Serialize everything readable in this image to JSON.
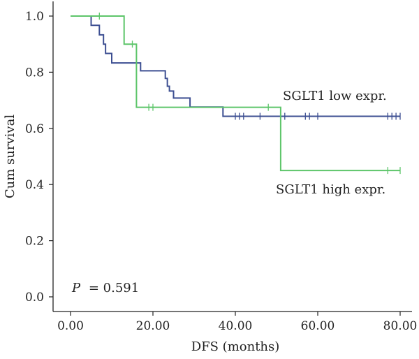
{
  "chart_data": {
    "type": "line",
    "subtype": "kaplan-meier",
    "title": "",
    "xlabel": "DFS (months)",
    "ylabel": "Cum survival",
    "xlim": [
      0,
      80
    ],
    "ylim": [
      0,
      1.0
    ],
    "x_ticks": [
      0,
      20,
      40,
      60,
      80
    ],
    "x_tick_labels": [
      "0.00",
      "20.00",
      "40.00",
      "60.00",
      "80.00"
    ],
    "y_ticks": [
      0,
      0.2,
      0.4,
      0.6,
      0.8,
      1.0
    ],
    "y_tick_labels": [
      "0.0",
      "0.2",
      "0.4",
      "0.6",
      "0.8",
      "1.0"
    ],
    "grid": false,
    "annotation": {
      "p_label": "P",
      "p_value": "= 0.591"
    },
    "series": [
      {
        "name": "SGLT1 low expr.",
        "color": "#3d4f92",
        "steps": [
          [
            0,
            1.0
          ],
          [
            5,
            0.967
          ],
          [
            7,
            0.933
          ],
          [
            8,
            0.9
          ],
          [
            8.5,
            0.867
          ],
          [
            10,
            0.833
          ],
          [
            16,
            0.833
          ],
          [
            17,
            0.805
          ],
          [
            23,
            0.778
          ],
          [
            23.5,
            0.75
          ],
          [
            24,
            0.733
          ],
          [
            25,
            0.708
          ],
          [
            29,
            0.676
          ],
          [
            37,
            0.643
          ],
          [
            80,
            0.643
          ]
        ],
        "censored": [
          [
            40,
            0.643
          ],
          [
            41,
            0.643
          ],
          [
            42,
            0.643
          ],
          [
            46,
            0.643
          ],
          [
            52,
            0.643
          ],
          [
            57,
            0.643
          ],
          [
            58,
            0.643
          ],
          [
            60,
            0.643
          ],
          [
            77,
            0.643
          ],
          [
            78,
            0.643
          ],
          [
            79,
            0.643
          ],
          [
            80,
            0.643
          ]
        ]
      },
      {
        "name": "SGLT1 high expr.",
        "color": "#5dc56a",
        "steps": [
          [
            0,
            1.0
          ],
          [
            13,
            0.9
          ],
          [
            16,
            0.675
          ],
          [
            51,
            0.45
          ],
          [
            80,
            0.45
          ]
        ],
        "censored": [
          [
            7,
            1.0
          ],
          [
            15,
            0.9
          ],
          [
            19,
            0.675
          ],
          [
            20,
            0.675
          ],
          [
            48,
            0.675
          ],
          [
            77,
            0.45
          ],
          [
            80,
            0.45
          ]
        ]
      }
    ]
  }
}
